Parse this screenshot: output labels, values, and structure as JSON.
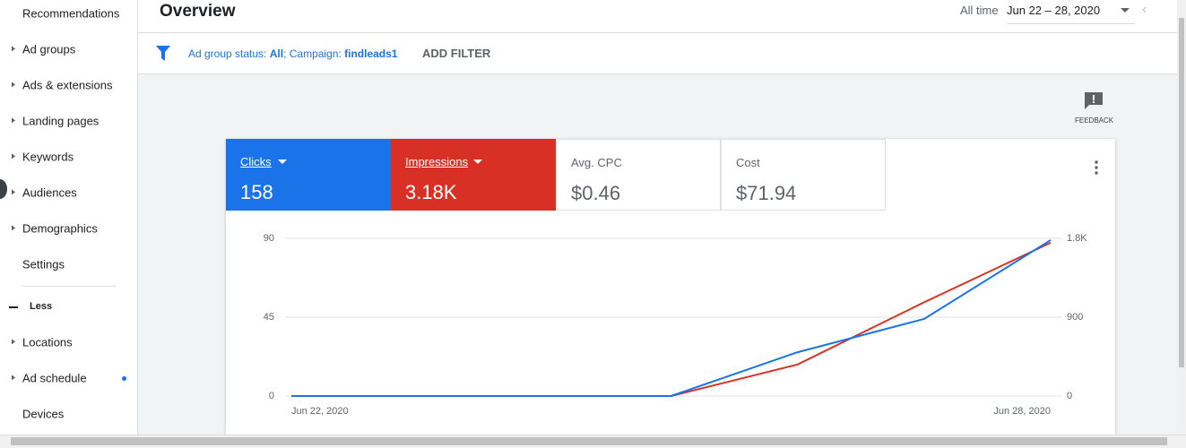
{
  "sidebar": {
    "items": [
      "Recommendations",
      "Ad groups",
      "Ads & extensions",
      "Landing pages",
      "Keywords",
      "Audiences",
      "Demographics",
      "Settings"
    ],
    "toggle": "Less",
    "more_items": [
      "Locations",
      "Ad schedule",
      "Devices"
    ]
  },
  "header": {
    "title": "Overview",
    "date_label": "All time",
    "date_range": "Jun 22 – 28, 2020"
  },
  "filter": {
    "status_label": "Ad group status: ",
    "status_value": "All",
    "campaign_label": "; Campaign: ",
    "campaign_value": "findleads1",
    "add": "ADD FILTER"
  },
  "feedback": "FEEDBACK",
  "metrics": [
    {
      "label": "Clicks",
      "value": "158"
    },
    {
      "label": "Impressions",
      "value": "3.18K"
    },
    {
      "label": "Avg. CPC",
      "value": "$0.46"
    },
    {
      "label": "Cost",
      "value": "$71.94"
    }
  ],
  "chart_data": {
    "type": "line",
    "categories": [
      "Jun 22, 2020",
      null,
      null,
      null,
      null,
      null,
      "Jun 28, 2020"
    ],
    "series": [
      {
        "name": "Clicks",
        "color": "#1a73e8",
        "values": [
          0,
          0,
          0,
          0,
          25,
          44,
          89
        ]
      },
      {
        "name": "Impressions",
        "color": "#d93025",
        "axis": "y2",
        "values": [
          0,
          0,
          0,
          0,
          360,
          1070,
          1750
        ]
      }
    ],
    "ylim": [
      0,
      90
    ],
    "yticks": [
      0,
      45,
      90
    ],
    "y2lim": [
      0,
      1800
    ],
    "y2ticks": [
      0,
      900,
      {
        "value": 1800,
        "label": "1.8K"
      }
    ],
    "grid": true
  }
}
